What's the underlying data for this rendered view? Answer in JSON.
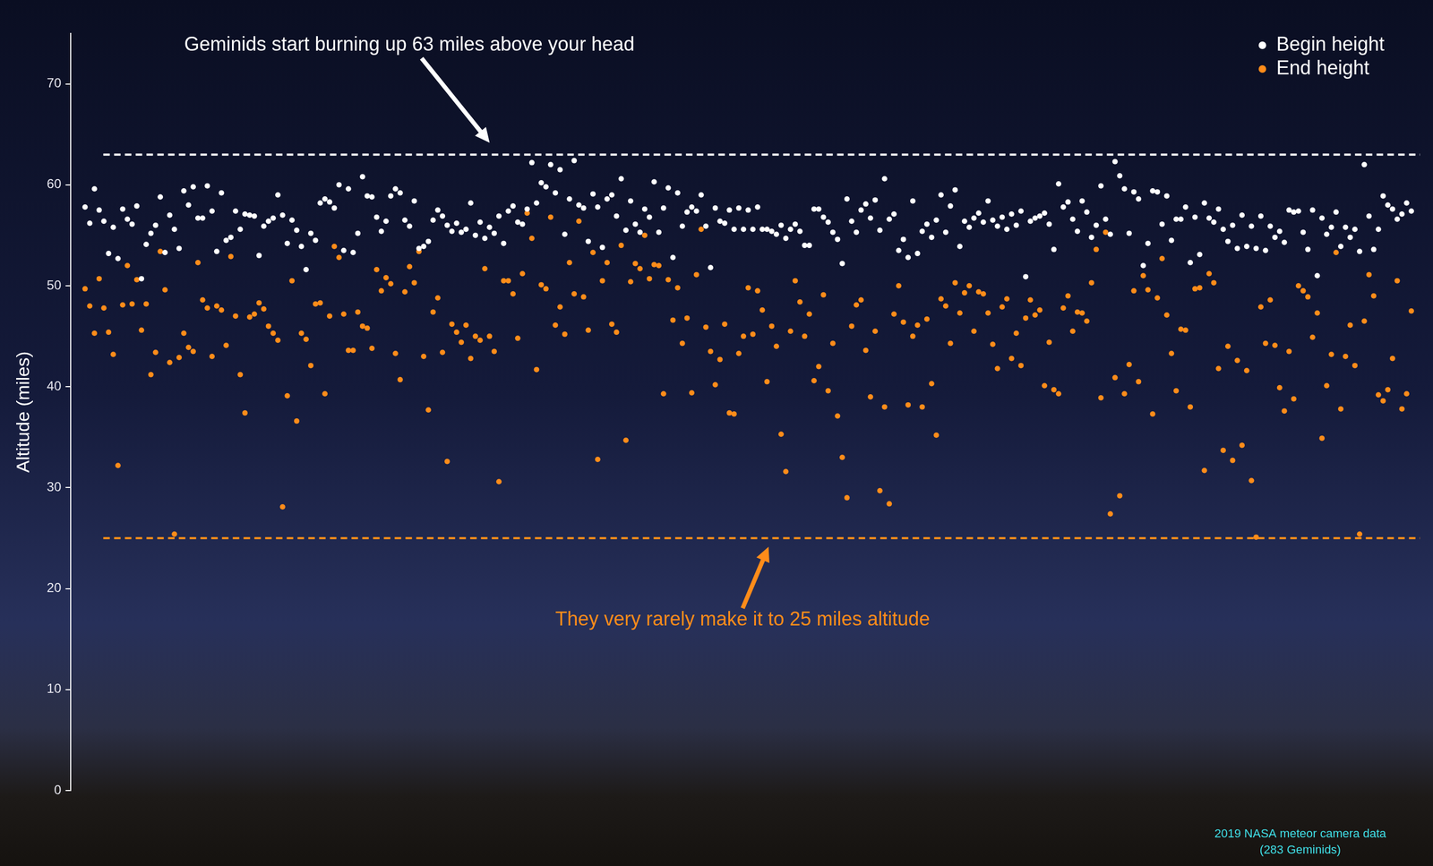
{
  "chart_data": {
    "type": "scatter",
    "y_label": "Altitude (miles)",
    "ylim": [
      0,
      75
    ],
    "yticks": [
      0,
      10,
      20,
      30,
      40,
      50,
      60,
      70
    ],
    "grid": false,
    "tick_labels": "y",
    "legend": "upper right",
    "series": [
      {
        "name": "Begin height",
        "color": "#ffffff",
        "marker": "circle",
        "values": [
          57.8,
          56.2,
          59.6,
          57.5,
          56.4,
          53.2,
          55.8,
          52.7,
          57.6,
          56.6,
          56.1,
          57.9,
          50.7,
          54.1,
          55.2,
          56.0,
          58.8,
          53.3,
          57.0,
          55.6,
          53.7,
          59.4,
          58.0,
          59.8,
          56.7,
          56.7,
          59.9,
          57.4,
          53.4,
          59.2,
          54.5,
          54.8,
          57.4,
          55.6,
          57.1,
          57.0,
          56.9,
          53.0,
          55.9,
          56.4,
          56.7,
          59.0,
          57.0,
          54.2,
          56.5,
          55.5,
          53.9,
          51.6,
          55.2,
          54.5,
          58.2,
          58.6,
          58.3,
          57.7,
          60.0,
          53.5,
          59.6,
          53.3,
          55.2,
          60.8,
          58.9,
          58.8,
          56.8,
          55.4,
          56.4,
          58.9,
          59.6,
          59.2,
          56.5,
          55.9,
          58.4,
          53.7,
          53.9,
          54.4,
          56.5,
          57.5,
          56.9,
          56.0,
          55.4,
          56.2,
          55.3,
          55.6,
          58.2,
          55.0,
          56.3,
          54.7,
          55.8,
          55.2,
          56.9,
          54.2,
          57.4,
          57.9,
          56.3,
          56.1,
          57.6,
          62.2,
          58.2,
          60.2,
          59.8,
          62.0,
          59.2,
          61.5,
          55.1,
          58.6,
          62.4,
          58.0,
          57.7,
          54.4,
          59.1,
          57.8,
          53.8,
          58.6,
          59.0,
          56.9,
          60.6,
          55.5,
          58.4,
          56.1,
          55.3,
          57.6,
          56.8,
          60.3,
          55.3,
          57.7,
          59.7,
          52.8,
          59.2,
          55.9,
          57.3,
          57.8,
          57.4,
          59.0,
          55.9,
          51.8,
          57.7,
          56.4,
          56.2,
          57.5,
          55.6,
          57.7,
          55.6,
          57.5,
          55.6,
          57.8,
          55.6,
          55.6,
          55.4,
          55.1,
          56.0,
          54.7,
          55.6,
          56.1,
          55.4,
          54.0,
          54.0,
          57.6,
          57.6,
          56.8,
          56.3,
          55.3,
          54.6,
          52.2,
          58.6,
          56.4,
          55.3,
          57.5,
          58.1,
          56.7,
          58.5,
          55.5,
          60.6,
          56.6,
          57.1,
          53.5,
          54.6,
          52.8,
          58.4,
          53.2,
          55.4,
          56.1,
          54.8,
          56.5,
          59.0,
          55.3,
          57.9,
          59.5,
          53.9,
          56.4,
          55.8,
          56.7,
          57.2,
          56.3,
          58.4,
          56.5,
          55.9,
          56.8,
          55.6,
          57.1,
          56.0,
          57.4,
          50.9,
          56.4,
          56.7,
          56.9,
          57.2,
          56.1,
          53.6,
          60.1,
          57.8,
          58.3,
          56.6,
          55.4,
          58.4,
          57.3,
          54.8,
          56.0,
          59.9,
          56.6,
          55.1,
          62.3,
          60.9,
          59.6,
          55.2,
          59.3,
          58.6,
          52.0,
          54.2,
          59.4,
          59.3,
          56.1,
          58.9,
          54.5,
          56.6,
          56.6,
          57.8,
          52.3,
          56.8,
          53.1,
          58.2,
          56.7,
          56.3,
          57.6,
          55.6,
          54.4,
          56.0,
          53.7,
          57.0,
          53.9,
          55.9,
          53.7,
          56.9,
          53.5,
          55.9,
          54.8,
          55.4,
          54.3,
          57.5,
          57.3,
          57.4,
          55.3,
          53.6,
          57.5,
          51.0,
          56.7,
          55.1,
          55.8,
          57.3,
          53.9,
          55.8,
          54.8,
          55.6,
          53.4,
          62.0,
          56.9,
          53.6,
          55.6,
          58.9,
          58.0,
          57.6,
          56.6,
          57.1,
          58.2,
          57.4
        ]
      },
      {
        "name": "End height",
        "color": "#ff8c1a",
        "marker": "circle",
        "values": [
          49.7,
          48.0,
          45.3,
          50.7,
          47.8,
          45.4,
          43.2,
          32.2,
          48.1,
          52.0,
          48.2,
          50.6,
          45.6,
          48.2,
          41.2,
          43.4,
          53.4,
          49.6,
          42.4,
          25.4,
          42.9,
          45.3,
          43.9,
          43.5,
          52.3,
          48.6,
          47.8,
          43.0,
          48.0,
          47.6,
          44.1,
          52.9,
          47.0,
          41.2,
          37.4,
          46.9,
          47.2,
          48.3,
          47.7,
          46.0,
          45.3,
          44.6,
          28.1,
          39.1,
          50.5,
          36.6,
          45.3,
          44.7,
          42.1,
          48.2,
          48.3,
          39.3,
          47.0,
          53.9,
          52.8,
          47.2,
          43.6,
          43.6,
          47.4,
          46.0,
          45.8,
          43.8,
          51.6,
          49.5,
          50.8,
          50.2,
          43.3,
          40.7,
          49.4,
          51.9,
          50.3,
          53.4,
          43.0,
          37.7,
          47.4,
          48.8,
          43.4,
          32.6,
          46.2,
          45.4,
          44.4,
          46.1,
          42.8,
          45.0,
          44.6,
          51.7,
          45.0,
          43.5,
          30.6,
          50.5,
          50.5,
          49.2,
          44.8,
          51.2,
          57.2,
          54.7,
          41.7,
          50.1,
          49.7,
          56.8,
          46.1,
          47.9,
          45.2,
          52.3,
          49.2,
          56.4,
          48.9,
          45.6,
          53.3,
          32.8,
          50.5,
          52.3,
          46.2,
          45.4,
          54.0,
          34.7,
          50.4,
          52.2,
          51.7,
          55.0,
          50.7,
          52.1,
          52.0,
          39.3,
          50.6,
          46.6,
          49.8,
          44.3,
          46.8,
          39.4,
          51.1,
          55.6,
          45.9,
          43.5,
          40.2,
          42.7,
          46.2,
          37.4,
          37.3,
          43.3,
          45.0,
          49.8,
          45.2,
          49.5,
          47.6,
          40.5,
          46.0,
          44.0,
          35.3,
          31.6,
          45.5,
          50.5,
          48.4,
          45.0,
          47.2,
          40.6,
          42.0,
          49.1,
          39.6,
          44.3,
          37.1,
          33.0,
          29.0,
          46.0,
          48.1,
          48.6,
          43.6,
          39.0,
          45.5,
          29.7,
          38.0,
          28.4,
          47.2,
          50.0,
          46.4,
          38.2,
          45.0,
          46.1,
          38.0,
          46.7,
          40.3,
          35.2,
          48.7,
          48.0,
          44.3,
          50.3,
          47.3,
          49.3,
          50.0,
          45.5,
          49.4,
          49.2,
          47.3,
          44.2,
          41.8,
          47.9,
          48.7,
          42.8,
          45.3,
          42.1,
          46.8,
          48.6,
          47.1,
          47.6,
          40.1,
          44.4,
          39.7,
          39.3,
          47.8,
          49.0,
          45.5,
          47.4,
          47.3,
          46.5,
          50.3,
          53.6,
          38.9,
          55.3,
          27.4,
          40.9,
          29.2,
          39.3,
          42.2,
          49.5,
          40.5,
          51.0,
          49.6,
          37.3,
          48.8,
          52.7,
          47.1,
          43.3,
          39.6,
          45.7,
          45.6,
          38.0,
          49.7,
          49.8,
          31.7,
          51.2,
          50.3,
          41.8,
          33.7,
          44.0,
          32.7,
          42.6,
          34.2,
          41.6,
          30.7,
          25.1,
          47.9,
          44.3,
          48.6,
          44.1,
          39.9,
          37.6,
          43.5,
          38.8,
          50.0,
          49.5,
          48.9,
          44.9,
          47.3,
          34.9,
          40.1,
          43.2,
          53.3,
          37.8,
          43.0,
          46.1,
          42.1,
          25.4,
          46.5,
          51.1,
          49.0,
          39.2,
          38.6,
          39.7,
          42.8,
          50.5,
          37.8,
          39.3,
          47.5
        ]
      }
    ],
    "annotations": [
      {
        "text": "Geminids start burning up 63 miles above your head",
        "y": 63,
        "color": "#ffffff"
      },
      {
        "text": "They very rarely make it to 25 miles altitude",
        "y": 25,
        "color": "#ff8c1a"
      }
    ],
    "source": [
      "2019 NASA meteor camera data",
      "(283 Geminids)"
    ],
    "source_color": "#40e0e8"
  }
}
